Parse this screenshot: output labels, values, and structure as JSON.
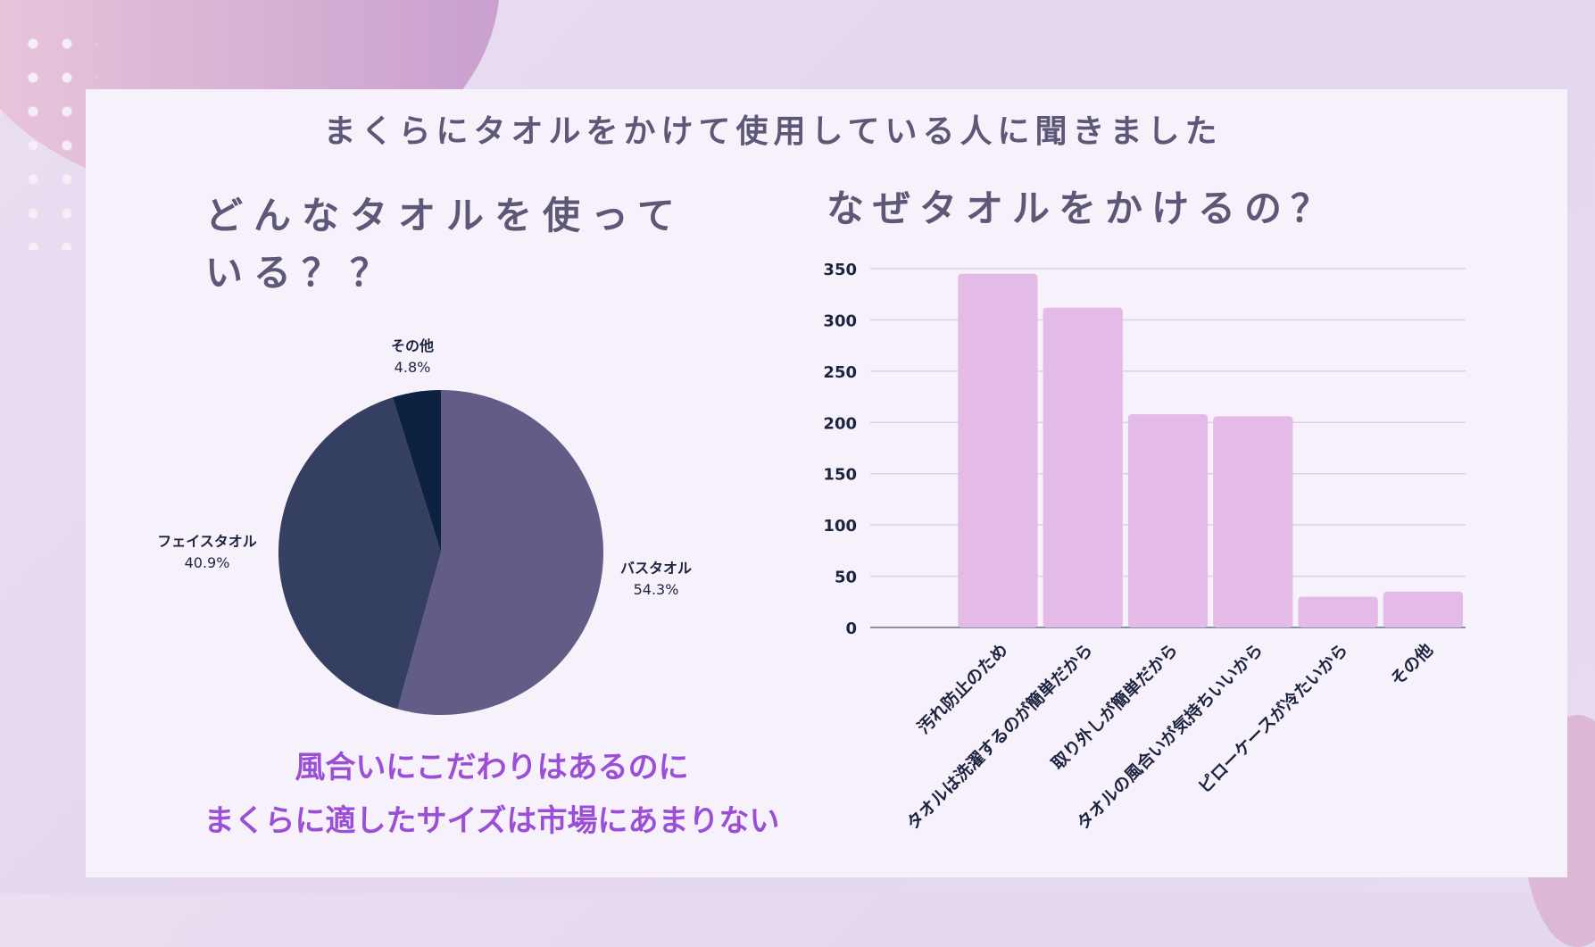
{
  "page_title": "まくらにタオルをかけて使用している人に聞きました",
  "left_heading": "どんなタオルを使っている？？",
  "right_heading": "なぜタオルをかけるの？",
  "note_lines": [
    "風合いにこだわりはあるのに",
    "まくらに適したサイズは市場にあまりない"
  ],
  "chart_data": [
    {
      "type": "pie",
      "title": "",
      "slices": [
        {
          "label": "バスタオル",
          "value": 54.3,
          "display": "54.3%",
          "color": "#625c87"
        },
        {
          "label": "フェイスタオル",
          "value": 40.9,
          "display": "40.9%",
          "color": "#353f61"
        },
        {
          "label": "その他",
          "value": 4.8,
          "display": "4.8%",
          "color": "#0d2240"
        }
      ],
      "start": "12 o'clock, clockwise"
    },
    {
      "type": "bar",
      "title": "",
      "xlabel": "",
      "ylabel": "",
      "categories": [
        "",
        "汚れ防止のため",
        "タオルは洗濯するのが簡単だから",
        "取り外しが簡単だから",
        "タオルの風合いが気持ちいいから",
        "ピローケースが冷たいから",
        "その他"
      ],
      "values": [
        0,
        345,
        312,
        208,
        206,
        30,
        35
      ],
      "ylim": [
        0,
        350
      ],
      "yticks": [
        0,
        50,
        100,
        150,
        200,
        250,
        300,
        350
      ],
      "grid": true,
      "bar_color": "#e3bbe6",
      "legend": "none"
    }
  ]
}
